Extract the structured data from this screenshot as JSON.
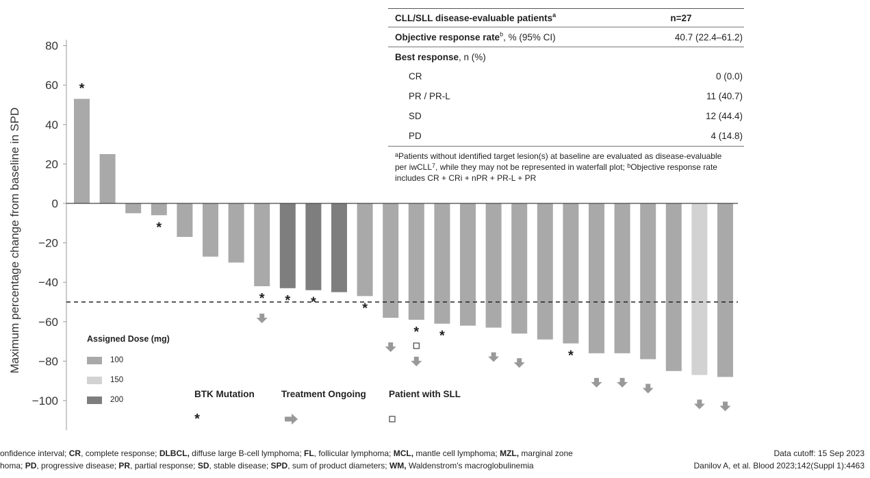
{
  "chart_data": {
    "type": "bar",
    "ylabel": "Maximum percentage change from baseline in SPD",
    "yticks": [
      80,
      60,
      40,
      20,
      0,
      -20,
      -40,
      -60,
      -80,
      -100
    ],
    "ylim": [
      -115,
      83
    ],
    "threshold": -50,
    "series": [
      {
        "name": "Maximum percentage change from baseline in SPD",
        "values": [
          53,
          25,
          -5,
          -6,
          -17,
          -27,
          -30,
          -42,
          -43,
          -44,
          -45,
          -47,
          -58,
          -59,
          -61,
          -62,
          -63,
          -66,
          -69,
          -71,
          -76,
          -76,
          -79,
          -85,
          -87,
          -88
        ],
        "dose_mg": [
          100,
          100,
          100,
          100,
          100,
          100,
          100,
          100,
          200,
          200,
          200,
          100,
          100,
          100,
          100,
          100,
          100,
          100,
          100,
          100,
          100,
          100,
          100,
          100,
          150,
          100
        ],
        "btk_mutation": [
          true,
          false,
          false,
          true,
          false,
          false,
          false,
          true,
          true,
          true,
          false,
          true,
          false,
          true,
          true,
          false,
          false,
          false,
          false,
          true,
          false,
          false,
          false,
          false,
          false,
          false
        ],
        "treatment_ongoing": [
          false,
          false,
          false,
          false,
          false,
          false,
          false,
          true,
          false,
          false,
          false,
          false,
          true,
          true,
          false,
          false,
          true,
          true,
          false,
          false,
          true,
          true,
          true,
          false,
          true,
          true
        ],
        "patient_with_sll": [
          false,
          false,
          false,
          false,
          false,
          false,
          false,
          false,
          false,
          false,
          false,
          false,
          false,
          true,
          false,
          false,
          false,
          false,
          false,
          false,
          false,
          false,
          false,
          false,
          false,
          false
        ]
      }
    ],
    "legend": {
      "title": "Assigned Dose (mg)",
      "items": [
        {
          "label": "100",
          "color": "#a9a9a9"
        },
        {
          "label": "150",
          "color": "#d2d2d2"
        },
        {
          "label": "200",
          "color": "#7e7e7e"
        }
      ]
    },
    "symbol_key": {
      "btk": {
        "label": "BTK Mutation",
        "symbol": "*"
      },
      "ongoing": {
        "label": "Treatment Ongoing",
        "symbol": "arrow"
      },
      "sll": {
        "label": "Patient with SLL",
        "symbol": "square"
      }
    }
  },
  "table": {
    "header": {
      "label": "CLL/SLL disease-evaluable patients",
      "sup": "a",
      "value": "n=27"
    },
    "orr": {
      "label_bold": "Objective response rate",
      "sup": "b",
      "label_rest": ", % (95% CI)",
      "value": "40.7 (22.4–61.2)"
    },
    "best": {
      "label_bold": "Best response",
      "label_rest": ", n (%)"
    },
    "rows": [
      {
        "label": "CR",
        "value": "0 (0.0)"
      },
      {
        "label": "PR / PR-L",
        "value": "11 (40.7)"
      },
      {
        "label": "SD",
        "value": "12 (44.4)"
      },
      {
        "label": "PD",
        "value": "4 (14.8)"
      }
    ],
    "note": {
      "sup_a": "a",
      "part1": "Patients without identified target lesion(s) at baseline are evaluated as disease-evaluable per iwCLL",
      "sup_7": "7",
      "part2": ", while they may not be represented in waterfall plot; ",
      "sup_b": "b",
      "part3": "Objective response rate includes CR + CRi + nPR + PR-L + PR"
    }
  },
  "footer": {
    "abbr1": [
      {
        "t": "onfidence interval; ",
        "b": false
      },
      {
        "t": "CR",
        "b": true
      },
      {
        "t": ", complete response; ",
        "b": false
      },
      {
        "t": "DLBCL,",
        "b": true
      },
      {
        "t": " diffuse large B-cell lymphoma; ",
        "b": false
      },
      {
        "t": "FL",
        "b": true
      },
      {
        "t": ", follicular lymphoma; ",
        "b": false
      },
      {
        "t": "MCL,",
        "b": true
      },
      {
        "t": " mantle cell lymphoma; ",
        "b": false
      },
      {
        "t": "MZL,",
        "b": true
      },
      {
        "t": " marginal zone",
        "b": false
      }
    ],
    "abbr2": [
      {
        "t": "homa; ",
        "b": false
      },
      {
        "t": "PD",
        "b": true
      },
      {
        "t": ", progressive disease; ",
        "b": false
      },
      {
        "t": "PR",
        "b": true
      },
      {
        "t": ", partial response; ",
        "b": false
      },
      {
        "t": "SD",
        "b": true
      },
      {
        "t": ", stable disease; ",
        "b": false
      },
      {
        "t": "SPD",
        "b": true
      },
      {
        "t": ", sum of product diameters; ",
        "b": false
      },
      {
        "t": "WM,",
        "b": true
      },
      {
        "t": " Waldenstrom's macroglobulinemia",
        "b": false
      }
    ],
    "cutoff": "Data cutoff: 15 Sep 2023",
    "citation": "Danilov A, et al. Blood 2023;142(Suppl 1):4463"
  }
}
